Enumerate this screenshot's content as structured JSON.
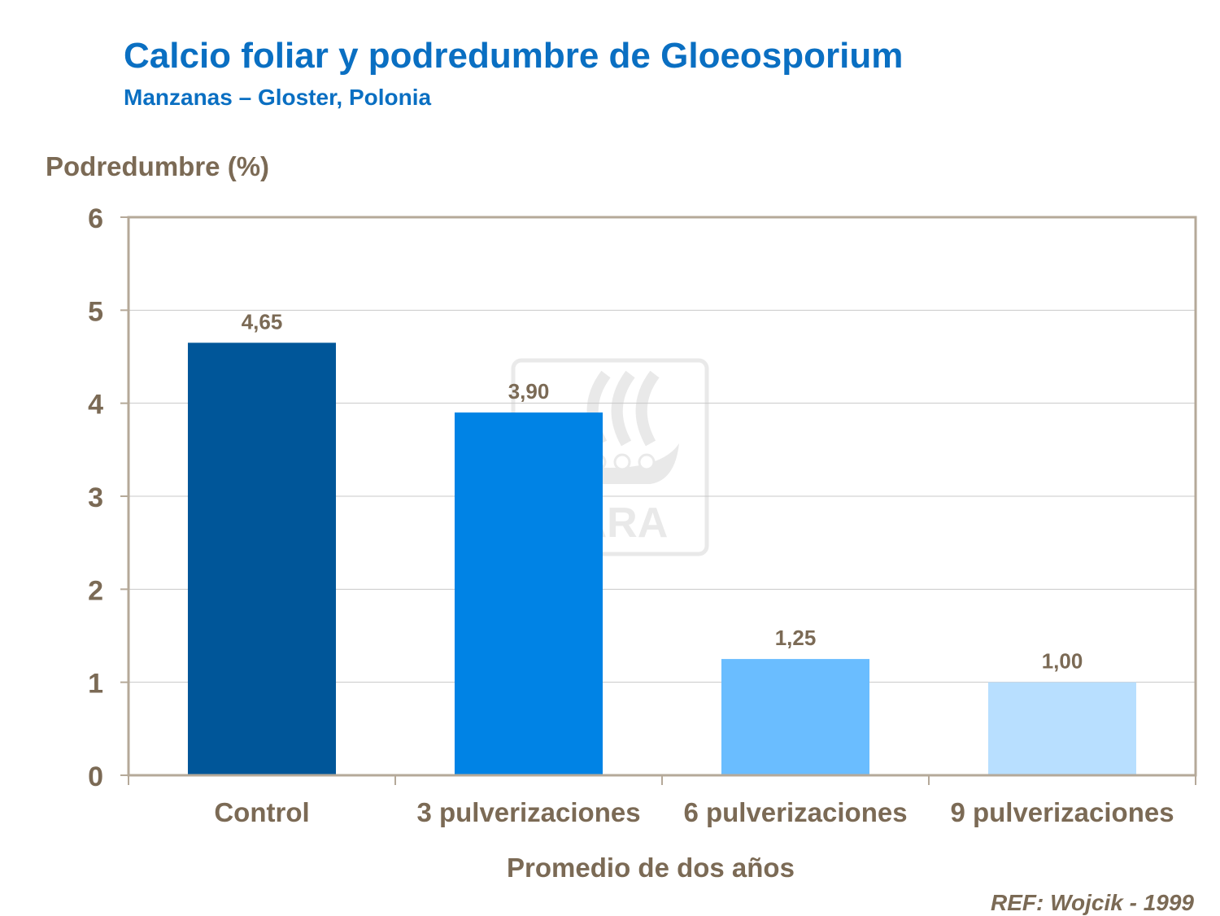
{
  "header": {
    "title": "Calcio foliar y podredumbre de Gloeosporium",
    "subtitle": "Manzanas – Gloster, Polonia"
  },
  "footer": {
    "reference": "REF: Wojcik - 1999"
  },
  "watermark": {
    "text": "YARA",
    "icon": "yara-viking-ship-logo"
  },
  "colors": {
    "title": "#0a6fc2",
    "axis_text": "#7b6a55",
    "plot_border": "#b5a999",
    "gridline": "#c8c8c8"
  },
  "chart_data": {
    "type": "bar",
    "title": "",
    "ylabel": "Podredumbre (%)",
    "xlabel": "Promedio de dos años",
    "categories": [
      "Control",
      "3 pulverizaciones",
      "6 pulverizaciones",
      "9 pulverizaciones"
    ],
    "values": [
      4.65,
      3.9,
      1.25,
      1.0
    ],
    "data_labels": [
      "4,65",
      "3,90",
      "1,25",
      "1,00"
    ],
    "bar_colors": [
      "#005699",
      "#0083e5",
      "#6abdff",
      "#b8dfff"
    ],
    "ylim": [
      0,
      6
    ],
    "yticks": [
      0,
      1,
      2,
      3,
      4,
      5,
      6
    ],
    "grid": true,
    "legend": "none"
  }
}
